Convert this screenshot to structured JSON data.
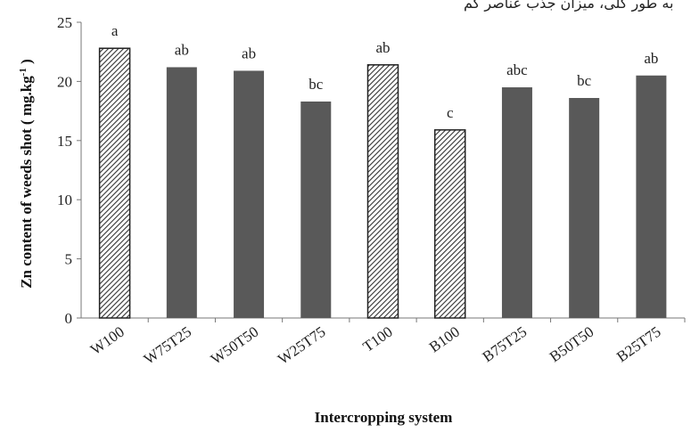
{
  "header_text": "بە طور کلی، میزان جذب عناصر کم",
  "chart_data": {
    "type": "bar",
    "title": "",
    "xlabel": "Intercropping system",
    "ylabel": "Zn content of weeds shot ( mg.kg",
    "ylabel_sup": "-1",
    "ylabel_end": " )",
    "ylim": [
      0,
      25
    ],
    "yticks": [
      0,
      5,
      10,
      15,
      20,
      25
    ],
    "grid": false,
    "categories": [
      "W100",
      "W75T25",
      "W50T50",
      "W25T75",
      "T100",
      "B100",
      "B75T25",
      "B50T50",
      "B25T75"
    ],
    "values": [
      22.8,
      21.2,
      20.9,
      18.3,
      21.4,
      15.9,
      19.5,
      18.6,
      20.5
    ],
    "significance_letters": [
      "a",
      "ab",
      "ab",
      "bc",
      "ab",
      "c",
      "abc",
      "bc",
      "ab"
    ],
    "bar_styles": [
      "hatched",
      "solid",
      "solid",
      "solid",
      "hatched",
      "hatched",
      "solid",
      "solid",
      "solid"
    ],
    "colors": {
      "solid": "#595959",
      "hatch_fg": "#333333",
      "hatch_bg": "#ffffff",
      "axis": "#777777"
    }
  }
}
